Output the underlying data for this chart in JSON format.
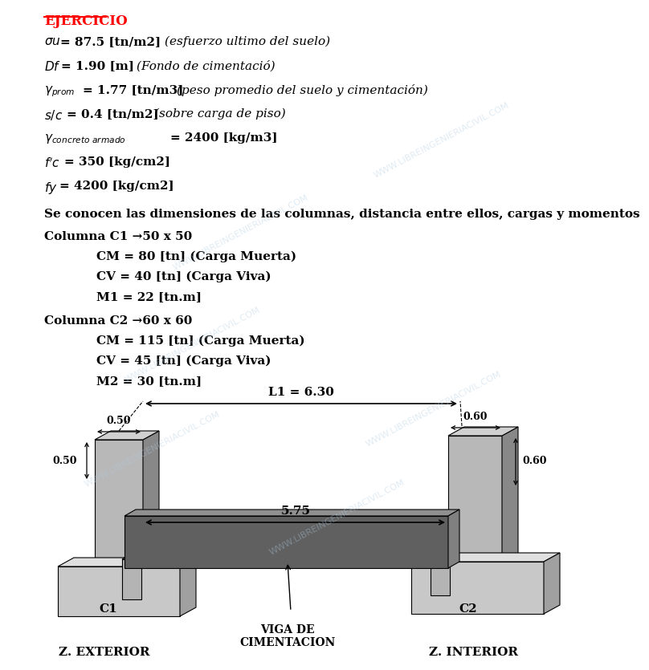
{
  "title": "EJERCICIO",
  "watermark": "WWW.LIBREINGENIERIACIVIL.COM",
  "col_intro": "Se conocen las dimensiones de las columnas, distancia entre ellos, cargas y momentos",
  "col1_header": "Columna C1 →50 x 50",
  "col1_items": [
    "CM = 80 [tn] (Carga Muerta)",
    "CV = 40 [tn] (Carga Viva)",
    "M1 = 22 [tn.m]"
  ],
  "col2_header": "Columna C2 →60 x 60",
  "col2_items": [
    "CM = 115 [tn] (Carga Muerta)",
    "CV = 45 [tn] (Carga Viva)",
    "M2 = 30 [tn.m]"
  ],
  "dim_L1": "L1 = 6.30",
  "dim_575": "5.75",
  "dim_050_left": "0.50",
  "dim_060_right": "0.60",
  "dim_050_vert": "0.50",
  "dim_060_vert": "0.60",
  "label_viga": "VIGA DE\nCIMENTACION",
  "label_C1": "C1",
  "label_C2": "C2",
  "label_z_ext": "Z. EXTERIOR",
  "label_z_int": "Z. INTERIOR",
  "bg_color": "#ffffff",
  "text_color": "#000000",
  "title_color": "#ff0000",
  "col_face": "#b8b8b8",
  "col_side": "#888888",
  "col_top": "#d0d0d0",
  "beam_dark": "#606060",
  "beam_mid": "#808080",
  "beam_top_col": "#909090",
  "foot_face": "#c8c8c8",
  "foot_top": "#e0e0e0",
  "foot_side": "#a0a0a0",
  "watermark_color": "#b0cce0"
}
